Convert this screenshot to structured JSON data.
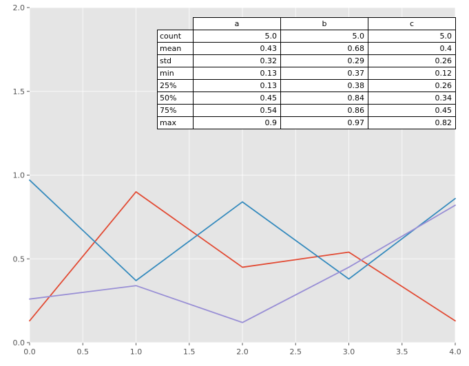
{
  "chart_data": {
    "type": "line",
    "x": [
      0,
      1,
      2,
      3,
      4
    ],
    "series": [
      {
        "name": "a",
        "color": "#E24A33",
        "values": [
          0.13,
          0.9,
          0.45,
          0.54,
          0.13
        ]
      },
      {
        "name": "b",
        "color": "#348ABD",
        "values": [
          0.97,
          0.37,
          0.84,
          0.38,
          0.86
        ]
      },
      {
        "name": "c",
        "color": "#988ED5",
        "values": [
          0.26,
          0.34,
          0.12,
          0.45,
          0.82
        ]
      }
    ],
    "title": "",
    "xlabel": "",
    "ylabel": "",
    "xlim": [
      0,
      4
    ],
    "ylim": [
      0,
      2
    ],
    "xticks": [
      "0.0",
      "0.5",
      "1.0",
      "1.5",
      "2.0",
      "2.5",
      "3.0",
      "3.5",
      "4.0"
    ],
    "yticks": [
      "0.0",
      "0.5",
      "1.0",
      "1.5",
      "2.0"
    ],
    "grid": true,
    "legend": "none",
    "plot_bg": "#e5e5e5",
    "grid_color": "#ffffff",
    "tick_color": "#555555"
  },
  "stats_table": {
    "columns": [
      "a",
      "b",
      "c"
    ],
    "rows": [
      {
        "label": "count",
        "values": [
          "5.0",
          "5.0",
          "5.0"
        ]
      },
      {
        "label": "mean",
        "values": [
          "0.43",
          "0.68",
          "0.4"
        ]
      },
      {
        "label": "std",
        "values": [
          "0.32",
          "0.29",
          "0.26"
        ]
      },
      {
        "label": "min",
        "values": [
          "0.13",
          "0.37",
          "0.12"
        ]
      },
      {
        "label": "25%",
        "values": [
          "0.13",
          "0.38",
          "0.26"
        ]
      },
      {
        "label": "50%",
        "values": [
          "0.45",
          "0.84",
          "0.34"
        ]
      },
      {
        "label": "75%",
        "values": [
          "0.54",
          "0.86",
          "0.45"
        ]
      },
      {
        "label": "max",
        "values": [
          "0.9",
          "0.97",
          "0.82"
        ]
      }
    ]
  }
}
